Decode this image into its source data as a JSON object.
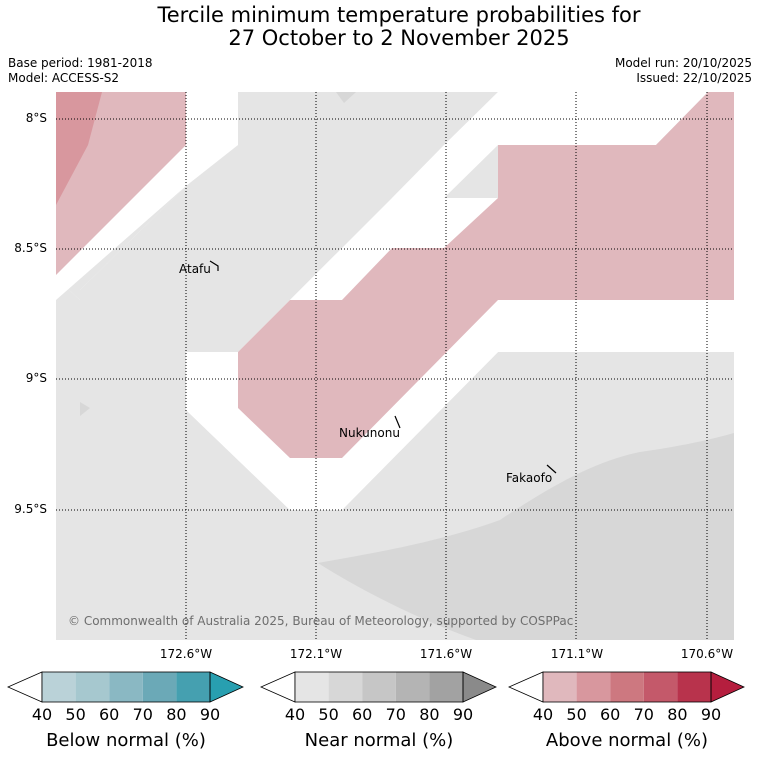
{
  "title": {
    "line1": "Tercile minimum temperature probabilities for",
    "line2": "27 October to 2 November 2025"
  },
  "meta": {
    "base_period": "Base period: 1981-2018",
    "model": "Model: ACCESS-S2",
    "model_run": "Model run: 20/10/2025",
    "issued": "Issued: 22/10/2025"
  },
  "map": {
    "lat_labels": [
      "8°S",
      "8.5°S",
      "9°S",
      "9.5°S"
    ],
    "lon_labels": [
      "172.6°W",
      "172.1°W",
      "171.6°W",
      "171.1°W",
      "170.6°W"
    ],
    "places": [
      "Atafu",
      "Nukunonu",
      "Fakaofo"
    ],
    "copyright": "© Commonwealth of Australia 2025, Bureau of Meteorology, supported by COSPPac"
  },
  "colorbars": [
    {
      "title": "Below normal (%)",
      "ticks": [
        "40",
        "50",
        "60",
        "70",
        "80",
        "90"
      ],
      "colors": [
        "#ffffff",
        "#bad2d8",
        "#a6c8cf",
        "#8ab8c3",
        "#6ba9b7",
        "#45a0b0",
        "#289fb0"
      ]
    },
    {
      "title": "Near normal (%)",
      "ticks": [
        "40",
        "50",
        "60",
        "70",
        "80",
        "90"
      ],
      "colors": [
        "#ffffff",
        "#e5e5e5",
        "#d7d7d7",
        "#c6c6c6",
        "#b4b4b4",
        "#a2a2a2",
        "#8a8a8a"
      ]
    },
    {
      "title": "Above normal (%)",
      "ticks": [
        "40",
        "50",
        "60",
        "70",
        "80",
        "90"
      ],
      "colors": [
        "#ffffff",
        "#e0b8bd",
        "#d8979e",
        "#cd7880",
        "#c4596a",
        "#b8334c",
        "#b51e3e"
      ]
    }
  ],
  "fill_colors": {
    "near_40": "#e5e5e5",
    "near_50": "#d7d7d7",
    "above_40": "#e0b8bd",
    "above_50": "#d8979e"
  }
}
